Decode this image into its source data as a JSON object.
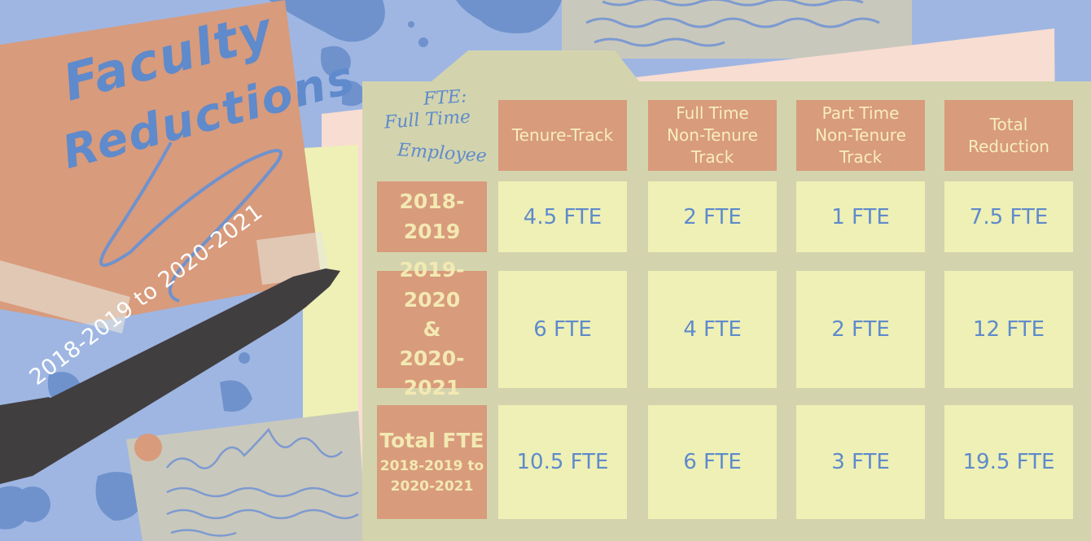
{
  "title": {
    "line1": "Faculty",
    "line2": "Reductions"
  },
  "pen_label": "2018-2019 to 2020-2021",
  "legend": {
    "line1": "FTE:",
    "line2": "Full Time",
    "line3": "Employee"
  },
  "colors": {
    "background": "#9fb6e2",
    "splatter": "#6f92cd",
    "folder": "#d3d4ad",
    "sticky_note": "#d89b7c",
    "cell": "#eef0b6",
    "text_blue": "#5f8acb",
    "pen": "#413e40"
  },
  "table": {
    "columns": [
      "Tenure-Track",
      "Full Time Non-Tenure Track",
      "Part Time Non-Tenure Track",
      "Total Reduction"
    ],
    "column_lines": [
      [
        "Tenure-Track"
      ],
      [
        "Full Time",
        "Non-Tenure",
        "Track"
      ],
      [
        "Part Time",
        "Non-Tenure",
        "Track"
      ],
      [
        "Total",
        "Reduction"
      ]
    ],
    "rows": [
      {
        "label": "2018-2019",
        "values": [
          "4.5 FTE",
          "2 FTE",
          "1 FTE",
          "7.5 FTE"
        ]
      },
      {
        "label_line1": "2019-2020",
        "label_line2": "&",
        "label_line3": "2020-2021",
        "values": [
          "6 FTE",
          "4 FTE",
          "2 FTE",
          "12 FTE"
        ]
      },
      {
        "label_line1": "Total FTE",
        "label_line2": "2018-2019 to",
        "label_line3": "2020-2021",
        "values": [
          "10.5 FTE",
          "6 FTE",
          "3 FTE",
          "19.5 FTE"
        ]
      }
    ]
  }
}
